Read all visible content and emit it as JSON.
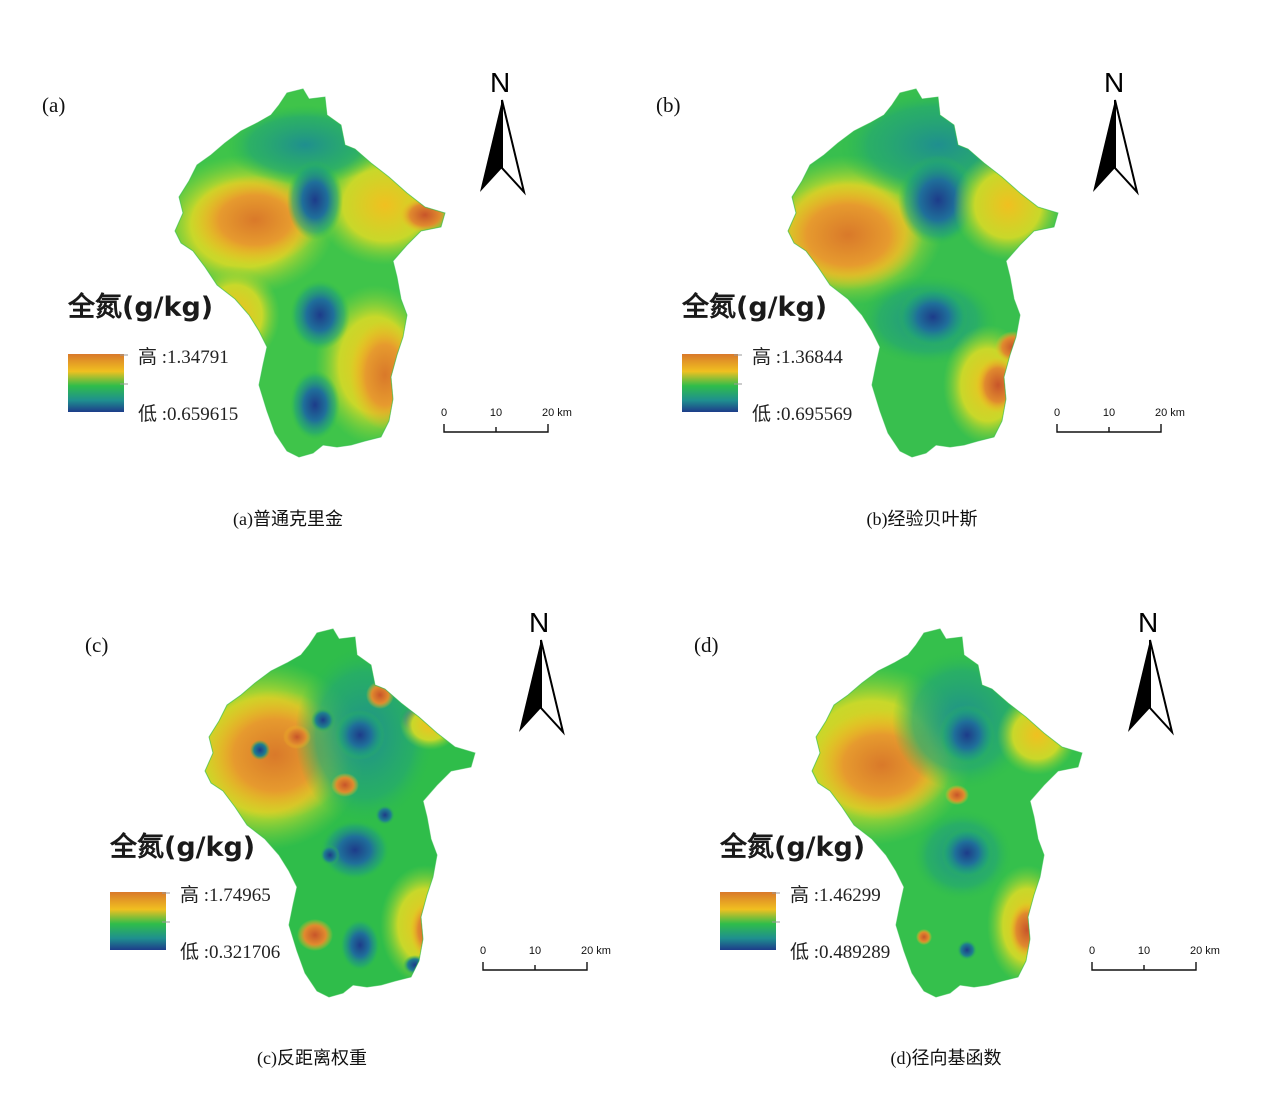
{
  "legend_title": "全氮(g/kg)",
  "north_label": "N",
  "scale": {
    "ticks": [
      "0",
      "10",
      "20 km"
    ]
  },
  "colors": {
    "high": "#d9792a",
    "upper": "#f0c020",
    "mid": "#2fbd4a",
    "lower": "#1f8f8f",
    "low": "#1d3c8a"
  },
  "panels": [
    {
      "letter": "(a)",
      "high_label": "高 :1.34791",
      "low_label": "低 :0.659615",
      "caption": "(a)普通克里金"
    },
    {
      "letter": "(b)",
      "high_label": "高 :1.36844",
      "low_label": "低 :0.695569",
      "caption": "(b)经验贝叶斯"
    },
    {
      "letter": "(c)",
      "high_label": "高 :1.74965",
      "low_label": "低 :0.321706",
      "caption": "(c)反距离权重"
    },
    {
      "letter": "(d)",
      "high_label": "高 :1.46299",
      "low_label": "低 :0.489289",
      "caption": "(d)径向基函数"
    }
  ]
}
